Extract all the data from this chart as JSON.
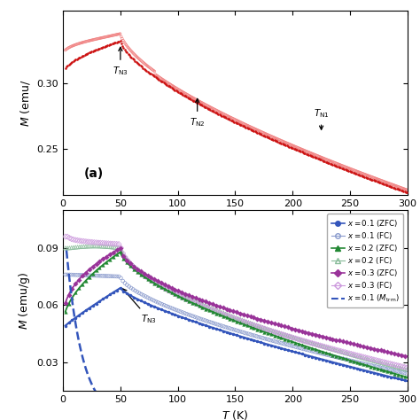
{
  "panel_a": {
    "zfc_color": "#cc1111",
    "fc_color": "#f08080",
    "yticks": [
      0.25,
      0.3
    ],
    "xticks": [
      0,
      50,
      100,
      150,
      200,
      250,
      300
    ],
    "xlim": [
      0,
      300
    ],
    "ylim": [
      0.215,
      0.355
    ],
    "xlabel": "T (K)",
    "ylabel": "M (emu/",
    "label_a": "(a)",
    "ann_TN3": {
      "x": 50,
      "ya": 0.33,
      "yt": 0.314,
      "label": "T_{N3}"
    },
    "ann_TN2": {
      "x": 117,
      "ya": 0.291,
      "yt": 0.275,
      "label": "T_{N2}"
    },
    "ann_TN1": {
      "x": 225,
      "ya": 0.262,
      "yt": 0.272,
      "label": "T_{N1}",
      "down": true
    }
  },
  "panel_b": {
    "yticks": [
      0.03,
      0.06,
      0.09
    ],
    "xticks": [
      0,
      50,
      100,
      150,
      200,
      250,
      300
    ],
    "xlim": [
      0,
      300
    ],
    "ylim": [
      0.015,
      0.11
    ],
    "xlabel": "T (K)",
    "ylabel": "M (emu/g)",
    "ann_TN3": {
      "x": 50,
      "ya": 0.07,
      "yt": 0.056,
      "label": "T_{N3}"
    },
    "c01z": "#3355bb",
    "c01f": "#8899cc",
    "c02z": "#228833",
    "c02f": "#88bb99",
    "c03z": "#993399",
    "c03f": "#cc99dd",
    "ctrm": "#3355bb"
  }
}
